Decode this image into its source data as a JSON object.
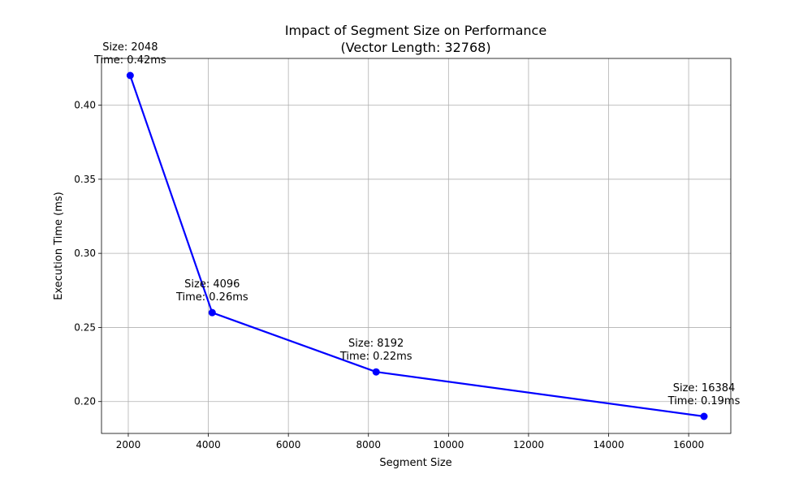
{
  "chart_data": {
    "type": "line",
    "title": "Impact of Segment Size on Performance",
    "subtitle": "(Vector Length: 32768)",
    "xlabel": "Segment Size",
    "ylabel": "Execution Time (ms)",
    "xlim": [
      1331,
      17053
    ],
    "ylim": [
      0.1785,
      0.4315
    ],
    "xticks": [
      2000,
      4000,
      6000,
      8000,
      10000,
      12000,
      14000,
      16000
    ],
    "yticks": [
      0.2,
      0.25,
      0.3,
      0.35,
      0.4
    ],
    "grid": true,
    "line_color": "#0000ff",
    "points": [
      {
        "x": 2048,
        "y": 0.42,
        "label_size": "Size: 2048",
        "label_time": "Time: 0.42ms"
      },
      {
        "x": 4096,
        "y": 0.26,
        "label_size": "Size: 4096",
        "label_time": "Time: 0.26ms"
      },
      {
        "x": 8192,
        "y": 0.22,
        "label_size": "Size: 8192",
        "label_time": "Time: 0.22ms"
      },
      {
        "x": 16384,
        "y": 0.19,
        "label_size": "Size: 16384",
        "label_time": "Time: 0.19ms"
      }
    ]
  }
}
